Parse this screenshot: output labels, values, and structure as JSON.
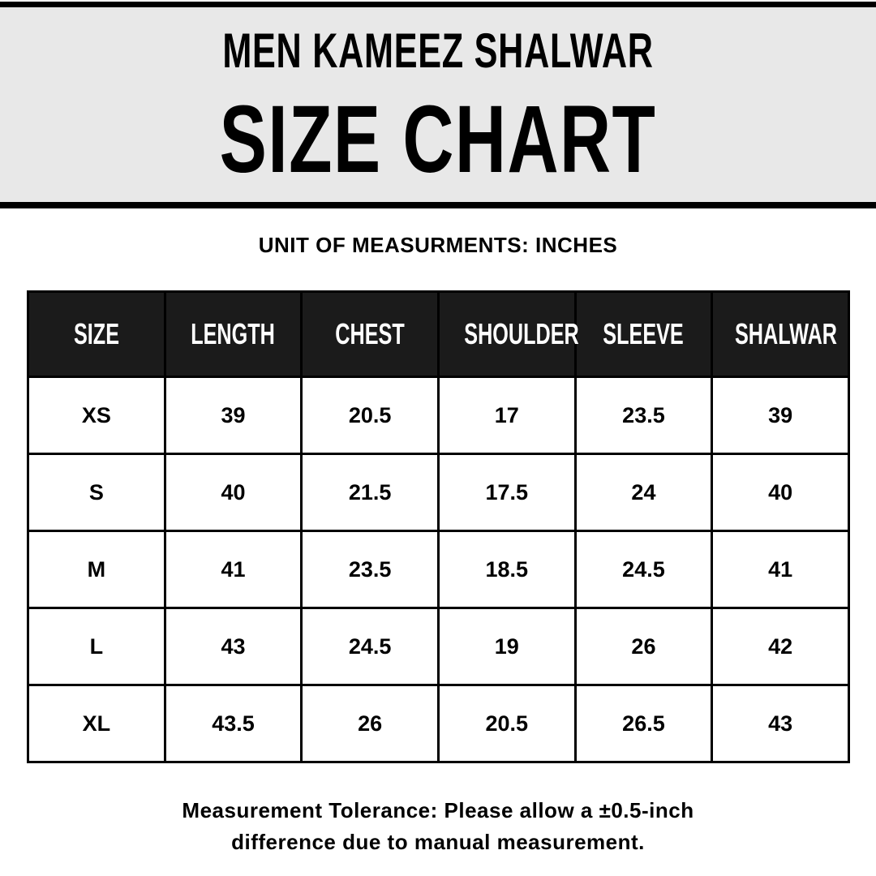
{
  "header": {
    "subtitle": "MEN KAMEEZ SHALWAR",
    "title": "SIZE CHART",
    "background_color": "#e8e8e8"
  },
  "unit_label": "UNIT OF MEASURMENTS: INCHES",
  "table": {
    "columns": [
      "SIZE",
      "LENGTH",
      "CHEST",
      "SHOULDER",
      "SLEEVE",
      "SHALWAR"
    ],
    "rows": [
      [
        "XS",
        "39",
        "20.5",
        "17",
        "23.5",
        "39"
      ],
      [
        "S",
        "40",
        "21.5",
        "17.5",
        "24",
        "40"
      ],
      [
        "M",
        "41",
        "23.5",
        "18.5",
        "24.5",
        "41"
      ],
      [
        "L",
        "43",
        "24.5",
        "19",
        "26",
        "42"
      ],
      [
        "XL",
        "43.5",
        "26",
        "20.5",
        "26.5",
        "43"
      ]
    ],
    "header_color": "#1b1b1b"
  },
  "footer": {
    "line1": "Measurement Tolerance: Please allow a ±0.5-inch",
    "line2": "difference due to manual measurement."
  }
}
